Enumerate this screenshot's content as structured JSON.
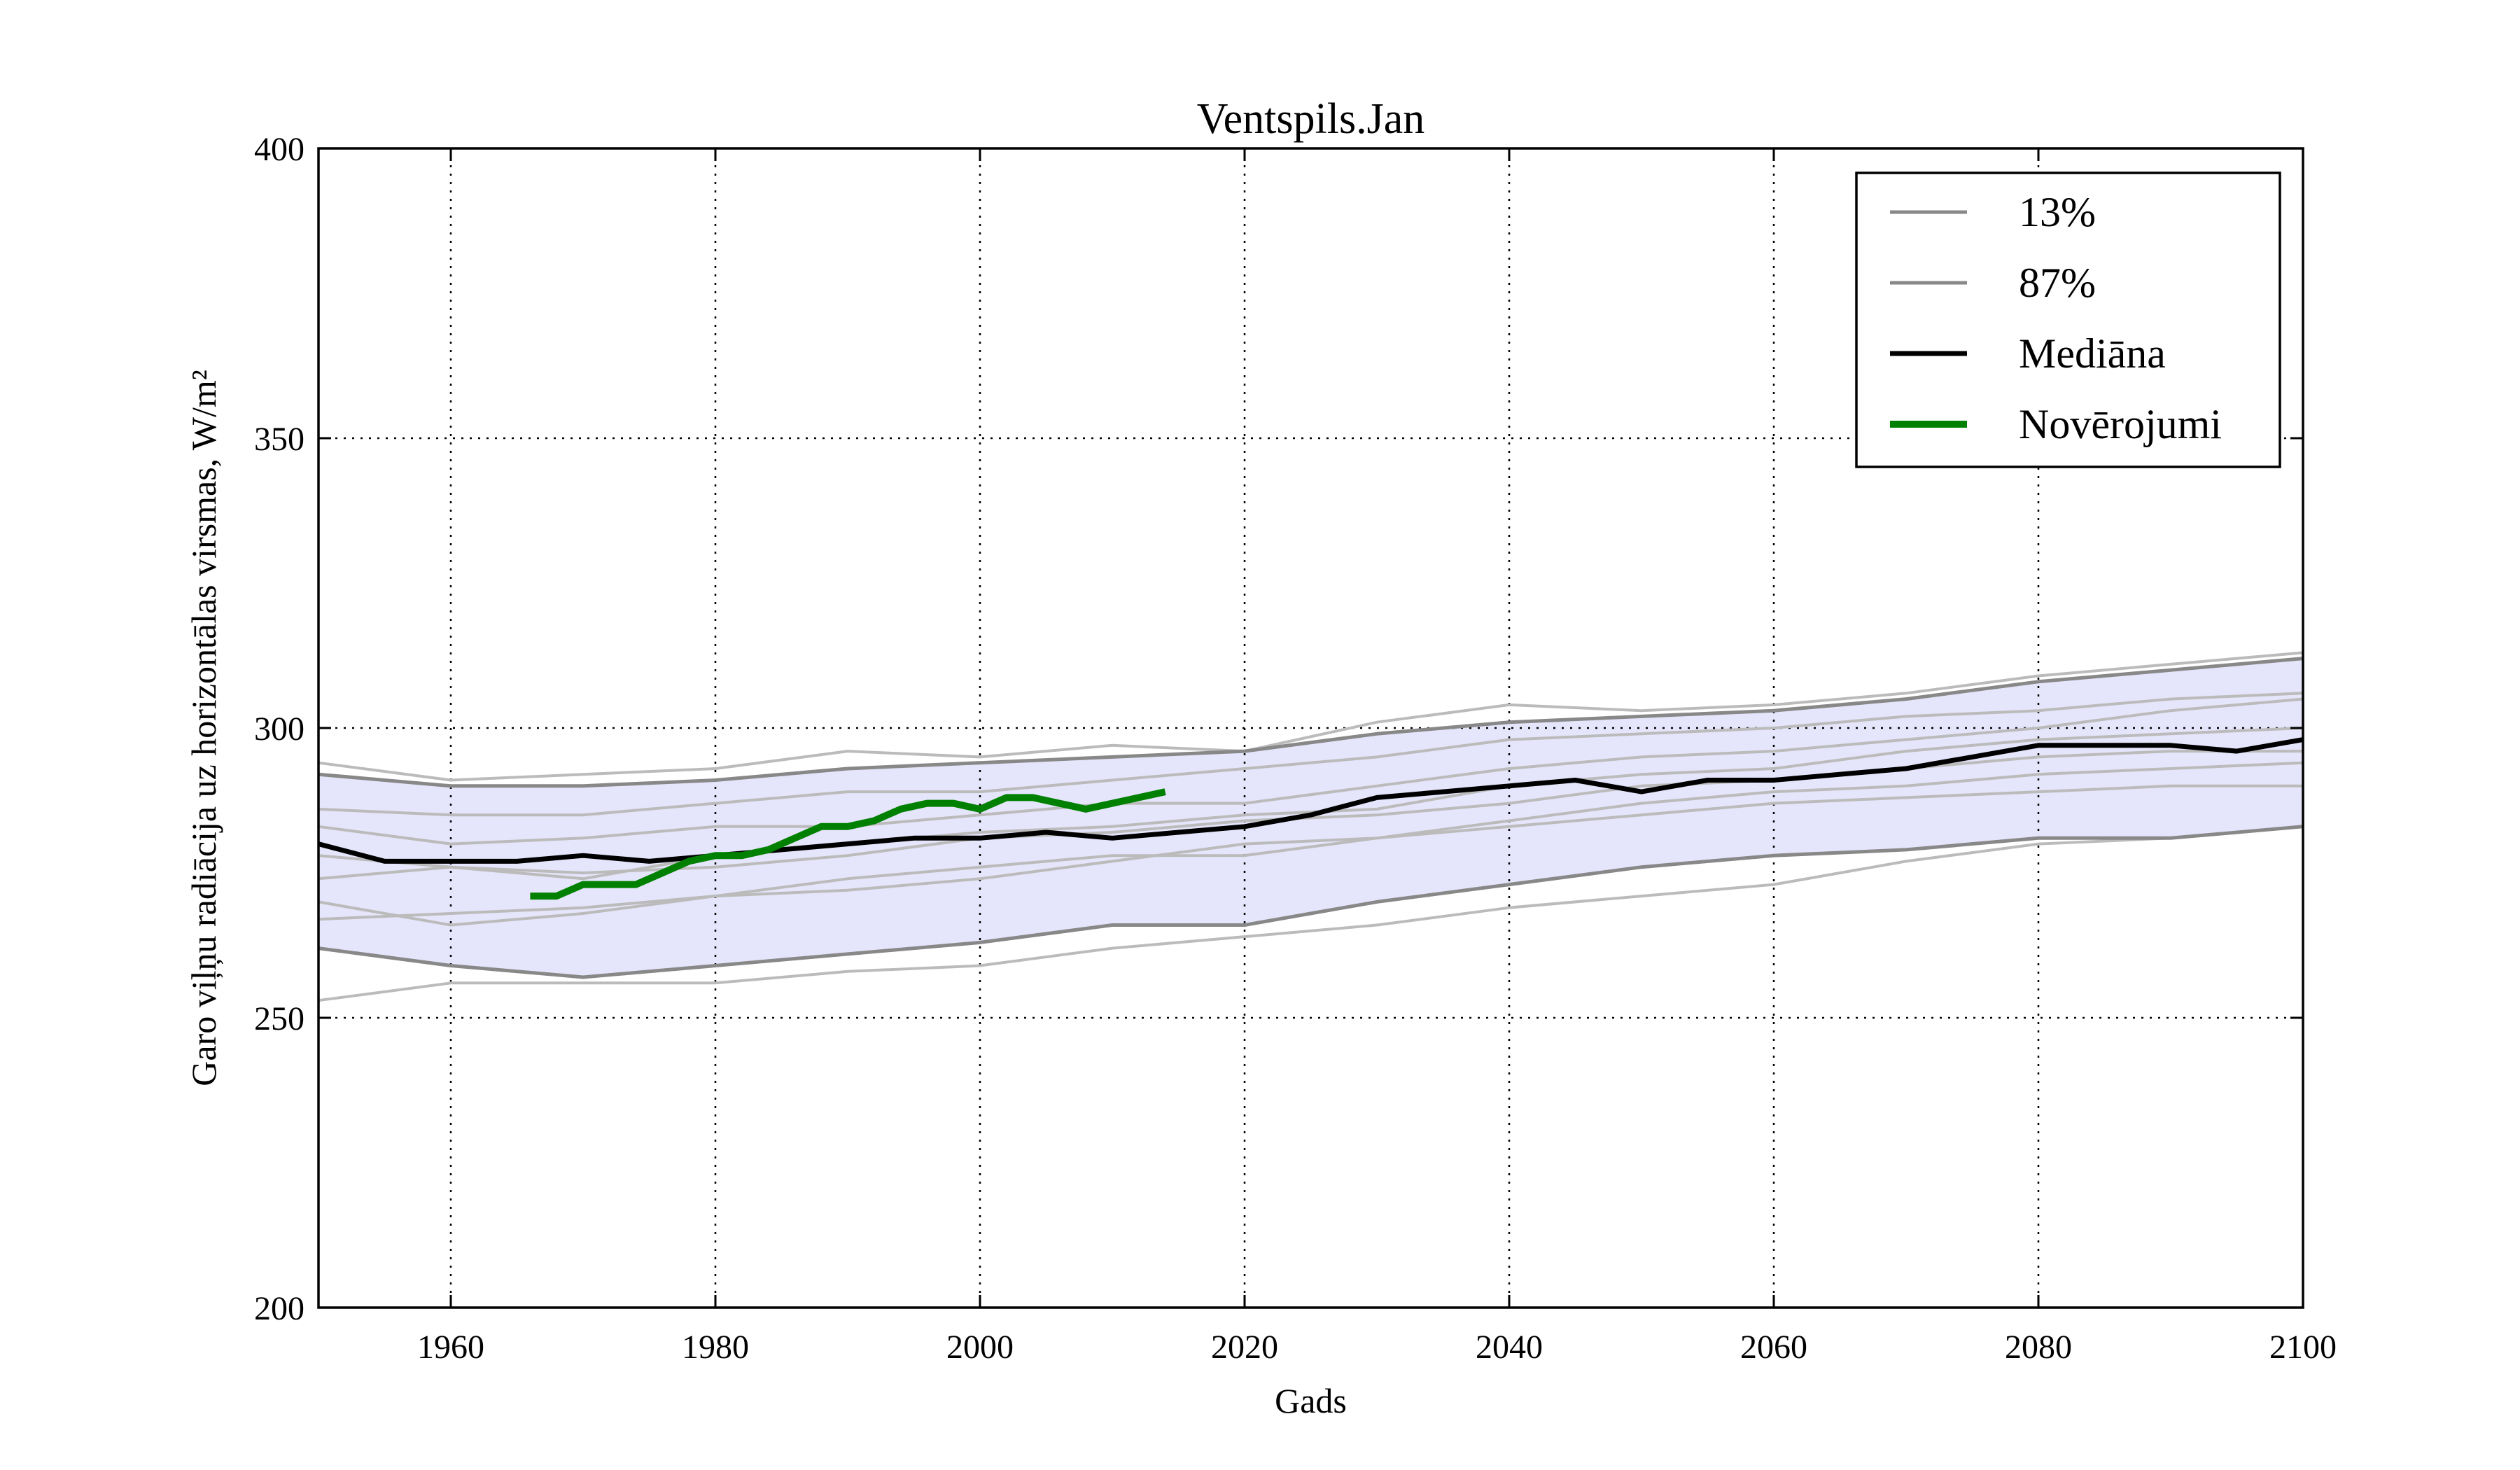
{
  "chart_data": {
    "type": "line",
    "title": "Ventspils.Jan",
    "xlabel": "Gads",
    "ylabel": "Garo viļņu radiācija uz horizontālas virsmas, W/m²",
    "xlim": [
      1950,
      2100
    ],
    "ylim": [
      200,
      400
    ],
    "xticks": [
      "1960",
      "1980",
      "2000",
      "2020",
      "2040",
      "2060",
      "2080",
      "2100"
    ],
    "yticks": [
      "200",
      "250",
      "300",
      "350",
      "400"
    ],
    "grid": true,
    "legend": "top-right",
    "band": {
      "color": "#e5e5fb",
      "x": [
        1950,
        1960,
        1970,
        1980,
        1990,
        2000,
        2010,
        2020,
        2030,
        2040,
        2050,
        2060,
        2070,
        2080,
        2090,
        2100
      ],
      "lower": [
        262,
        259,
        257,
        259,
        261,
        263,
        266,
        266,
        270,
        273,
        276,
        278,
        279,
        281,
        281,
        283
      ],
      "upper": [
        292,
        290,
        290,
        291,
        293,
        294,
        295,
        296,
        299,
        301,
        302,
        303,
        305,
        308,
        310,
        312
      ]
    },
    "ensemble": {
      "color": "#bbbbbb",
      "x": [
        1950,
        1960,
        1970,
        1980,
        1990,
        2000,
        2010,
        2020,
        2030,
        2040,
        2050,
        2060,
        2070,
        2080,
        2090,
        2100
      ],
      "members": [
        [
          294,
          291,
          292,
          293,
          296,
          295,
          297,
          296,
          301,
          304,
          303,
          304,
          306,
          309,
          311,
          313
        ],
        [
          253,
          256,
          256,
          256,
          258,
          259,
          262,
          264,
          266,
          269,
          271,
          273,
          277,
          280,
          281,
          283
        ],
        [
          286,
          285,
          285,
          287,
          289,
          289,
          291,
          293,
          295,
          298,
          299,
          300,
          302,
          303,
          305,
          306
        ],
        [
          274,
          276,
          275,
          276,
          278,
          281,
          282,
          284,
          285,
          287,
          290,
          291,
          293,
          295,
          296,
          296
        ],
        [
          267,
          268,
          269,
          271,
          272,
          274,
          277,
          280,
          281,
          283,
          285,
          287,
          288,
          289,
          290,
          290
        ],
        [
          283,
          280,
          281,
          283,
          283,
          285,
          287,
          287,
          290,
          293,
          295,
          296,
          298,
          300,
          303,
          305
        ],
        [
          270,
          266,
          268,
          271,
          274,
          276,
          278,
          278,
          281,
          284,
          287,
          289,
          290,
          292,
          293,
          294
        ],
        [
          278,
          276,
          274,
          278,
          280,
          282,
          283,
          285,
          286,
          290,
          292,
          293,
          296,
          298,
          299,
          300
        ]
      ]
    },
    "series": [
      {
        "name": "13%",
        "color": "#888888",
        "x": [
          1950,
          1960,
          1970,
          1980,
          1990,
          2000,
          2010,
          2020,
          2030,
          2040,
          2050,
          2060,
          2070,
          2080,
          2090,
          2100
        ],
        "values": [
          262,
          259,
          257,
          259,
          261,
          263,
          266,
          266,
          270,
          273,
          276,
          278,
          279,
          281,
          281,
          283
        ]
      },
      {
        "name": "87%",
        "color": "#888888",
        "x": [
          1950,
          1960,
          1970,
          1980,
          1990,
          2000,
          2010,
          2020,
          2030,
          2040,
          2050,
          2060,
          2070,
          2080,
          2090,
          2100
        ],
        "values": [
          292,
          290,
          290,
          291,
          293,
          294,
          295,
          296,
          299,
          301,
          302,
          303,
          305,
          308,
          310,
          312
        ]
      },
      {
        "name": "Mediāna",
        "color": "#000000",
        "x": [
          1950,
          1955,
          1960,
          1965,
          1970,
          1975,
          1980,
          1985,
          1990,
          1995,
          2000,
          2005,
          2010,
          2015,
          2020,
          2025,
          2030,
          2035,
          2040,
          2045,
          2050,
          2055,
          2060,
          2065,
          2070,
          2075,
          2080,
          2085,
          2090,
          2095,
          2100
        ],
        "values": [
          280,
          277,
          277,
          277,
          278,
          277,
          278,
          279,
          280,
          281,
          281,
          282,
          281,
          282,
          283,
          285,
          288,
          289,
          290,
          291,
          289,
          291,
          291,
          292,
          293,
          295,
          297,
          297,
          297,
          296,
          298
        ]
      },
      {
        "name": "Novērojumi",
        "color": "#008000",
        "x": [
          1966,
          1968,
          1970,
          1972,
          1974,
          1976,
          1978,
          1980,
          1982,
          1984,
          1986,
          1988,
          1990,
          1992,
          1994,
          1996,
          1998,
          2000,
          2002,
          2004,
          2006,
          2008,
          2010,
          2012,
          2014
        ],
        "values": [
          271,
          271,
          273,
          273,
          273,
          275,
          277,
          278,
          278,
          279,
          281,
          283,
          283,
          284,
          286,
          287,
          287,
          286,
          288,
          288,
          287,
          286,
          287,
          288,
          289
        ]
      }
    ]
  }
}
